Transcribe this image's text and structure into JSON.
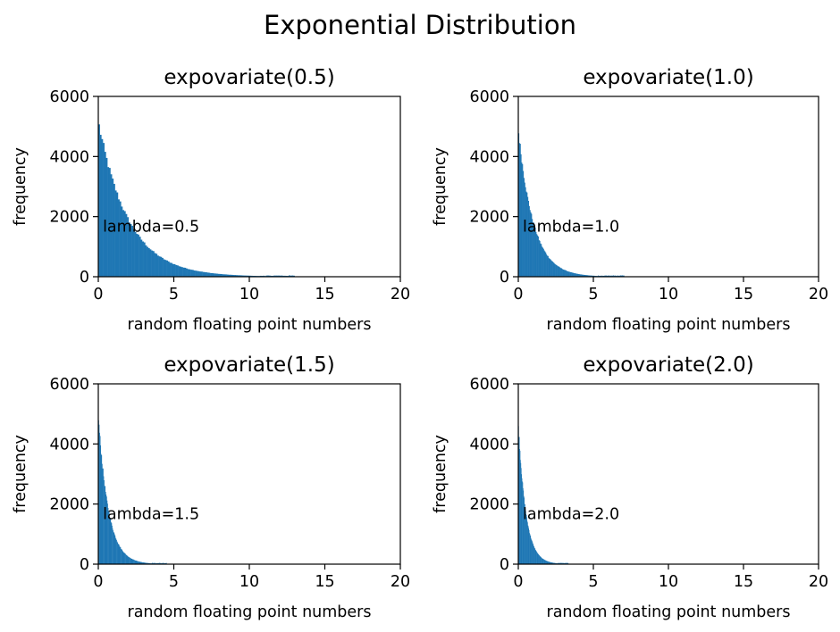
{
  "figure_title": "Exponential Distribution",
  "chart_data": [
    {
      "type": "bar",
      "title": "expovariate(0.5)",
      "xlabel": "random floating point numbers",
      "ylabel": "frequency",
      "xlim": [
        0,
        20
      ],
      "ylim": [
        0,
        6000
      ],
      "xticks": [
        0,
        5,
        10,
        15,
        20
      ],
      "yticks": [
        0,
        2000,
        4000,
        6000
      ],
      "annotation": {
        "text": "lambda=0.5",
        "x": 0.3,
        "y": 1500
      },
      "lambda": 0.5,
      "histogram": {
        "bin_start": 0,
        "bin_width": 0.1,
        "peak": 5150,
        "last_bin_x": 12.9
      },
      "color": "#1f77b4"
    },
    {
      "type": "bar",
      "title": "expovariate(1.0)",
      "xlabel": "random floating point numbers",
      "ylabel": "frequency",
      "xlim": [
        0,
        20
      ],
      "ylim": [
        0,
        6000
      ],
      "xticks": [
        0,
        5,
        10,
        15,
        20
      ],
      "yticks": [
        0,
        2000,
        4000,
        6000
      ],
      "annotation": {
        "text": "lambda=1.0",
        "x": 0.3,
        "y": 1500
      },
      "lambda": 1.0,
      "histogram": {
        "bin_start": 0,
        "bin_width": 0.05,
        "peak": 4900,
        "last_bin_x": 7.0
      },
      "color": "#1f77b4"
    },
    {
      "type": "bar",
      "title": "expovariate(1.5)",
      "xlabel": "random floating point numbers",
      "ylabel": "frequency",
      "xlim": [
        0,
        20
      ],
      "ylim": [
        0,
        6000
      ],
      "xticks": [
        0,
        5,
        10,
        15,
        20
      ],
      "yticks": [
        0,
        2000,
        4000,
        6000
      ],
      "annotation": {
        "text": "lambda=1.5",
        "x": 0.3,
        "y": 1500
      },
      "lambda": 1.5,
      "histogram": {
        "bin_start": 0,
        "bin_width": 0.033,
        "peak": 4950,
        "last_bin_x": 4.5
      },
      "color": "#1f77b4"
    },
    {
      "type": "bar",
      "title": "expovariate(2.0)",
      "xlabel": "random floating point numbers",
      "ylabel": "frequency",
      "xlim": [
        0,
        20
      ],
      "ylim": [
        0,
        6000
      ],
      "xticks": [
        0,
        5,
        10,
        15,
        20
      ],
      "yticks": [
        0,
        2000,
        4000,
        6000
      ],
      "annotation": {
        "text": "lambda=2.0",
        "x": 0.3,
        "y": 1500
      },
      "lambda": 2.0,
      "histogram": {
        "bin_start": 0,
        "bin_width": 0.025,
        "peak": 4700,
        "last_bin_x": 3.3
      },
      "color": "#1f77b4"
    }
  ]
}
